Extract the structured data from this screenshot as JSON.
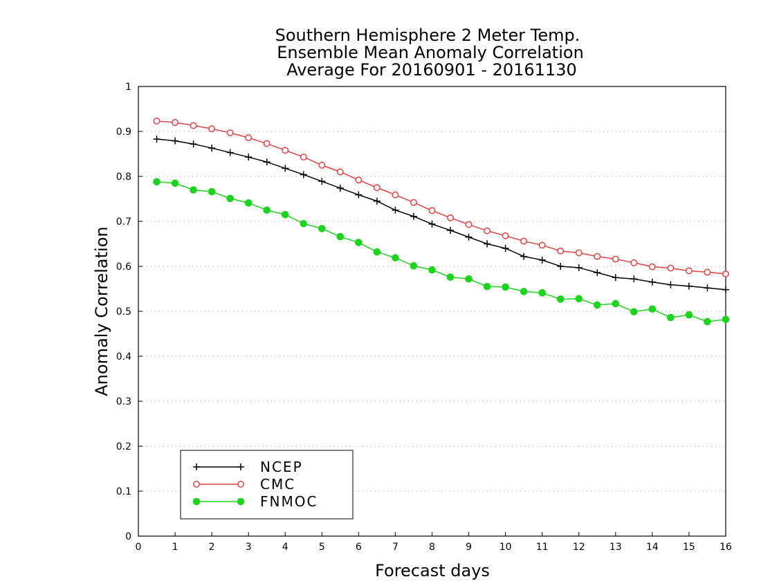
{
  "chart_data": {
    "type": "line",
    "title": [
      "Southern Hemisphere 2 Meter Temp.",
      "Ensemble Mean Anomaly Correlation",
      "Average For 20160901 - 20161130"
    ],
    "xlabel": "Forecast days",
    "ylabel": "Anomaly Correlation",
    "xlim": [
      0,
      16
    ],
    "ylim": [
      0,
      1
    ],
    "x_ticks": [
      "0",
      "1",
      "2",
      "3",
      "4",
      "5",
      "6",
      "7",
      "8",
      "9",
      "10",
      "11",
      "12",
      "13",
      "14",
      "15",
      "16"
    ],
    "y_ticks": [
      "0",
      "0.1",
      "0.2",
      "0.3",
      "0.4",
      "0.5",
      "0.6",
      "0.7",
      "0.8",
      "0.9",
      "1"
    ],
    "grid": "horizontal-dotted",
    "legend_position": "bottom-left",
    "x": [
      0.5,
      1,
      1.5,
      2,
      2.5,
      3,
      3.5,
      4,
      4.5,
      5,
      5.5,
      6,
      6.5,
      7,
      7.5,
      8,
      8.5,
      9,
      9.5,
      10,
      10.5,
      11,
      11.5,
      12,
      12.5,
      13,
      13.5,
      14,
      14.5,
      15,
      15.5,
      16
    ],
    "series": [
      {
        "name": "NCEP",
        "color": "#000000",
        "marker": "plus",
        "values": [
          0.883,
          0.879,
          0.872,
          0.863,
          0.853,
          0.843,
          0.832,
          0.818,
          0.804,
          0.789,
          0.774,
          0.759,
          0.745,
          0.725,
          0.711,
          0.694,
          0.68,
          0.665,
          0.65,
          0.64,
          0.622,
          0.614,
          0.6,
          0.597,
          0.586,
          0.575,
          0.572,
          0.565,
          0.559,
          0.556,
          0.552,
          0.548
        ]
      },
      {
        "name": "CMC",
        "color": "#e34141",
        "marker": "open-circle",
        "values": [
          0.923,
          0.92,
          0.913,
          0.906,
          0.897,
          0.886,
          0.873,
          0.858,
          0.843,
          0.825,
          0.81,
          0.792,
          0.775,
          0.759,
          0.742,
          0.724,
          0.708,
          0.693,
          0.679,
          0.668,
          0.656,
          0.647,
          0.634,
          0.63,
          0.622,
          0.616,
          0.608,
          0.599,
          0.596,
          0.59,
          0.587,
          0.583
        ]
      },
      {
        "name": "FNMOC",
        "color": "#1ed31e",
        "marker": "filled-circle",
        "values": [
          0.788,
          0.785,
          0.77,
          0.766,
          0.751,
          0.741,
          0.725,
          0.715,
          0.695,
          0.684,
          0.666,
          0.653,
          0.632,
          0.619,
          0.601,
          0.592,
          0.576,
          0.572,
          0.555,
          0.554,
          0.544,
          0.541,
          0.527,
          0.528,
          0.514,
          0.517,
          0.499,
          0.505,
          0.486,
          0.492,
          0.477,
          0.482
        ]
      }
    ]
  }
}
